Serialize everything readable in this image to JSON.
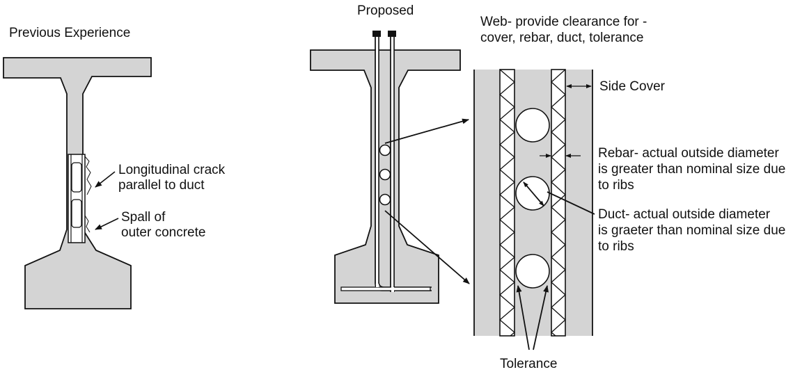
{
  "labels": {
    "previous_experience": "Previous Experience",
    "proposed": "Proposed",
    "web_line1": "Web- provide clearance for -",
    "web_line2": "cover, rebar, duct, tolerance",
    "side_cover": "Side Cover",
    "long_crack_line1": "Longitudinal crack",
    "long_crack_line2": "parallel to duct",
    "spall_line1": "Spall of",
    "spall_line2": "outer concrete",
    "rebar_line1": "Rebar- actual outside diameter",
    "rebar_line2": "is greater than nominal size due",
    "rebar_line3": "to ribs",
    "duct_line1": "Duct- actual outside diameter",
    "duct_line2": "is graeter than nominal size due",
    "duct_line3": "to ribs",
    "tolerance": "Tolerance"
  },
  "colors": {
    "concrete_fill": "#d4d4d4",
    "stroke": "#111111",
    "background": "#ffffff"
  }
}
